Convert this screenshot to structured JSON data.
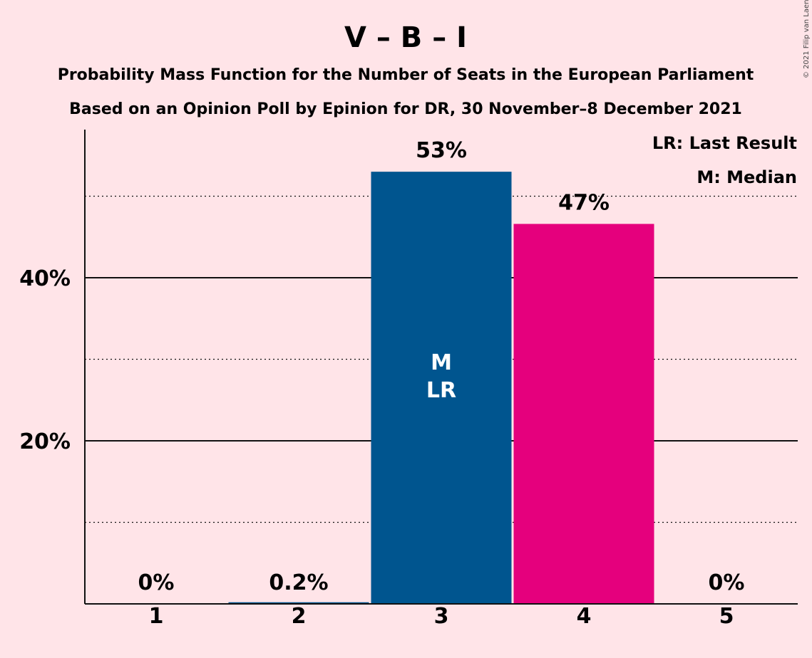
{
  "chart_data": {
    "type": "bar",
    "title": "V – B – I",
    "subtitle_lines": [
      "Probability Mass Function for the Number of Seats in the European Parliament",
      "Based on an Opinion Poll by Epinion for DR, 30 November–8 December 2021"
    ],
    "copyright": "© 2021 Filip van Laenen",
    "categories": [
      "1",
      "2",
      "3",
      "4",
      "5"
    ],
    "values": [
      0,
      0.2,
      53,
      46.6,
      0
    ],
    "value_labels": [
      "0%",
      "0.2%",
      "53%",
      "47%",
      "0%"
    ],
    "bar_colors": [
      "#00558F",
      "#00558F",
      "#00558F",
      "#E5007D",
      "#00558F"
    ],
    "bar_inner_labels": [
      "",
      "",
      "M\nLR",
      "",
      ""
    ],
    "legend": [
      "LR: Last Result",
      "M: Median"
    ],
    "legend_placement": "top-right",
    "y_ticks": [
      {
        "value": 20,
        "label": "20%"
      },
      {
        "value": 40,
        "label": "40%"
      }
    ],
    "y_minor_gridlines": [
      10,
      30,
      50
    ],
    "ylim": [
      0,
      58
    ]
  }
}
